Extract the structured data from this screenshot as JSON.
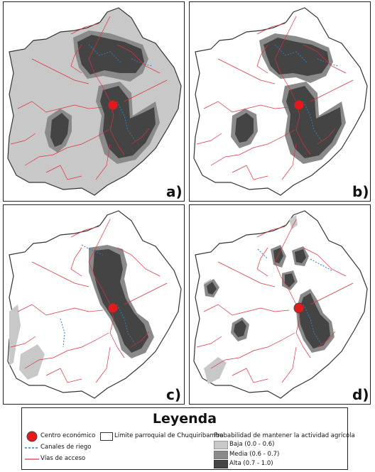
{
  "panels": [
    {
      "label": "a)",
      "scenario": "a"
    },
    {
      "label": "b)",
      "scenario": "b"
    },
    {
      "label": "c)",
      "scenario": "c"
    },
    {
      "label": "d)",
      "scenario": "d"
    }
  ],
  "legend": {
    "title": "Leyenda",
    "economic_center": "Centro económico",
    "irrigation": "Canales de riego",
    "roads": "Vías de acceso",
    "boundary": "Límite parroquial de Chuquiribamba",
    "probability_title": "Probabilidad de mantener la actividad agrícola",
    "classes": [
      {
        "label": "Baja (0.0 - 0.6)",
        "color": "#c8c8c8"
      },
      {
        "label": "Media (0.6 - 0.7)",
        "color": "#8a8a8a"
      },
      {
        "label": "Alta (0.7 - 1.0)",
        "color": "#444444"
      }
    ]
  },
  "colors": {
    "boundary_fill": "#ffffff",
    "boundary_stroke": "#333333",
    "roads": "#e0303c",
    "irrigation": "#2a7fc8",
    "center": "#e31a1c",
    "low": "#c8c8c8",
    "medium": "#8a8a8a",
    "high": "#444444"
  }
}
